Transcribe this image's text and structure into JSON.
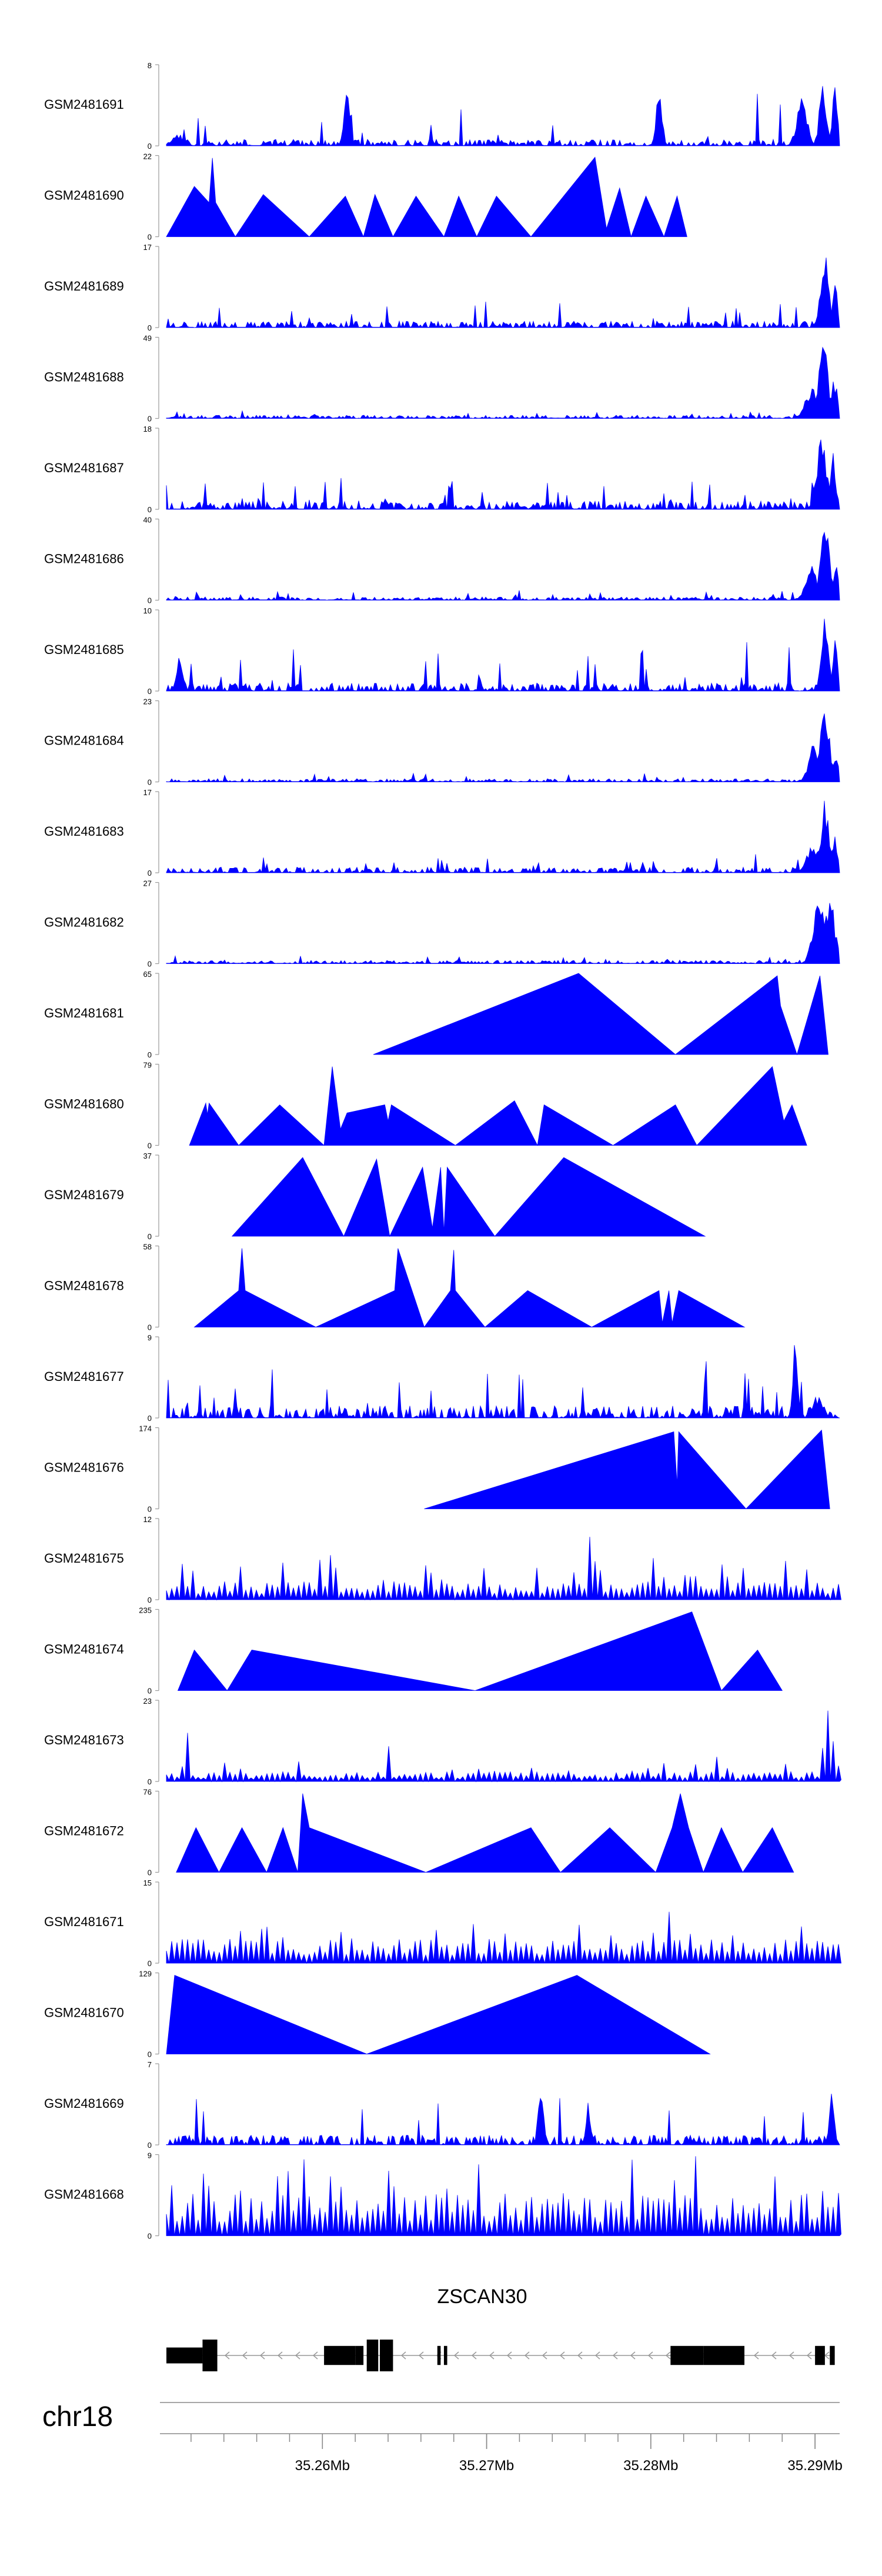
{
  "chart_data": {
    "type": "area",
    "title": "",
    "color": "#0000ff",
    "chromosome": "chr18",
    "gene": "ZSCAN30",
    "x_range_mb": [
      35.2505,
      35.2915
    ],
    "x_ticks_mb": [
      35.26,
      35.27,
      35.28,
      35.29
    ],
    "x_tick_labels": [
      "35.26Mb",
      "35.27Mb",
      "35.28Mb",
      "35.29Mb"
    ],
    "tracks": [
      {
        "name": "GSM2481691",
        "ymax": 8,
        "ymax_label": "8",
        "ymin_label": "0",
        "style": "dense",
        "x_start": 35.2505,
        "x_end": 35.2915,
        "seed": 11,
        "base": 0.08,
        "spike": 0.65,
        "peaks": [
          [
            35.2512,
            0.15,
            0.25
          ],
          [
            35.2615,
            0.7,
            0.12
          ],
          [
            35.2805,
            0.75,
            0.12
          ],
          [
            35.2892,
            0.7,
            0.2
          ],
          [
            35.2905,
            0.8,
            0.15
          ],
          [
            35.2912,
            0.95,
            0.1
          ]
        ]
      },
      {
        "name": "GSM2481690",
        "ymax": 22,
        "ymax_label": "22",
        "ymin_label": "0",
        "style": "tri",
        "pts": [
          [
            35.2505,
            0
          ],
          [
            35.2522,
            0.62
          ],
          [
            35.2531,
            0.42
          ],
          [
            35.2533,
            0.97
          ],
          [
            35.2535,
            0.42
          ],
          [
            35.2547,
            0
          ],
          [
            35.2564,
            0.52
          ],
          [
            35.2592,
            0
          ],
          [
            35.2614,
            0.5
          ],
          [
            35.2625,
            0
          ],
          [
            35.2632,
            0.52
          ],
          [
            35.2643,
            0
          ],
          [
            35.2657,
            0.5
          ],
          [
            35.2674,
            0
          ],
          [
            35.2683,
            0.5
          ],
          [
            35.2694,
            0
          ],
          [
            35.2706,
            0.5
          ],
          [
            35.2727,
            0
          ],
          [
            35.2766,
            0.98
          ],
          [
            35.2773,
            0.1
          ],
          [
            35.2781,
            0.6
          ],
          [
            35.2788,
            0
          ],
          [
            35.2797,
            0.5
          ],
          [
            35.2808,
            0
          ],
          [
            35.2816,
            0.5
          ],
          [
            35.2822,
            0
          ]
        ]
      },
      {
        "name": "GSM2481689",
        "ymax": 17,
        "ymax_label": "17",
        "ymin_label": "0",
        "style": "dense",
        "x_start": 35.2505,
        "x_end": 35.2915,
        "seed": 13,
        "base": 0.08,
        "spike": 0.3,
        "peaks": [
          [
            35.2906,
            0.95,
            0.18
          ],
          [
            35.2912,
            0.6,
            0.12
          ]
        ]
      },
      {
        "name": "GSM2481688",
        "ymax": 49,
        "ymax_label": "49",
        "ymin_label": "0",
        "style": "dense",
        "x_start": 35.2505,
        "x_end": 35.2915,
        "seed": 17,
        "base": 0.04,
        "spike": 0.08,
        "peaks": [
          [
            35.2898,
            0.4,
            0.25
          ],
          [
            35.2905,
            0.97,
            0.2
          ],
          [
            35.2912,
            0.55,
            0.12
          ]
        ]
      },
      {
        "name": "GSM2481687",
        "ymax": 18,
        "ymax_label": "18",
        "ymin_label": "0",
        "style": "dense",
        "x_start": 35.2505,
        "x_end": 35.2915,
        "seed": 19,
        "base": 0.1,
        "spike": 0.35,
        "peaks": [
          [
            35.2904,
            0.9,
            0.2
          ],
          [
            35.2911,
            0.7,
            0.12
          ]
        ]
      },
      {
        "name": "GSM2481686",
        "ymax": 40,
        "ymax_label": "40",
        "ymin_label": "0",
        "style": "dense",
        "x_start": 35.2505,
        "x_end": 35.2915,
        "seed": 23,
        "base": 0.04,
        "spike": 0.1,
        "peaks": [
          [
            35.2898,
            0.45,
            0.25
          ],
          [
            35.2906,
            0.97,
            0.18
          ],
          [
            35.2913,
            0.55,
            0.1
          ]
        ]
      },
      {
        "name": "GSM2481685",
        "ymax": 10,
        "ymax_label": "10",
        "ymin_label": "0",
        "style": "dense",
        "x_start": 35.2505,
        "x_end": 35.2915,
        "seed": 29,
        "base": 0.1,
        "spike": 0.6,
        "peaks": [
          [
            35.2513,
            0.45,
            0.12
          ],
          [
            35.2906,
            0.9,
            0.15
          ],
          [
            35.2912,
            0.7,
            0.1
          ]
        ]
      },
      {
        "name": "GSM2481684",
        "ymax": 23,
        "ymax_label": "23",
        "ymin_label": "0",
        "style": "dense",
        "x_start": 35.2505,
        "x_end": 35.2915,
        "seed": 31,
        "base": 0.04,
        "spike": 0.1,
        "peaks": [
          [
            35.2899,
            0.5,
            0.2
          ],
          [
            35.2906,
            0.97,
            0.2
          ],
          [
            35.2913,
            0.45,
            0.1
          ]
        ]
      },
      {
        "name": "GSM2481683",
        "ymax": 17,
        "ymax_label": "17",
        "ymin_label": "0",
        "style": "dense",
        "x_start": 35.2505,
        "x_end": 35.2915,
        "seed": 37,
        "base": 0.07,
        "spike": 0.18,
        "peaks": [
          [
            35.2899,
            0.4,
            0.25
          ],
          [
            35.2906,
            0.95,
            0.18
          ],
          [
            35.2912,
            0.6,
            0.1
          ]
        ]
      },
      {
        "name": "GSM2481682",
        "ymax": 27,
        "ymax_label": "27",
        "ymin_label": "0",
        "style": "dense",
        "x_start": 35.2505,
        "x_end": 35.2915,
        "seed": 41,
        "base": 0.04,
        "spike": 0.08,
        "peaks": [
          [
            35.2902,
            0.9,
            0.22
          ],
          [
            35.2909,
            0.97,
            0.18
          ],
          [
            35.2913,
            0.5,
            0.1
          ]
        ]
      },
      {
        "name": "GSM2481681",
        "ymax": 65,
        "ymax_label": "65",
        "ymin_label": "0",
        "style": "tri",
        "pts": [
          [
            35.2631,
            0
          ],
          [
            35.2756,
            1.0
          ],
          [
            35.2815,
            0
          ],
          [
            35.2877,
            0.97
          ],
          [
            35.2879,
            0.6
          ],
          [
            35.2889,
            0
          ],
          [
            35.2903,
            0.97
          ],
          [
            35.2908,
            0
          ]
        ]
      },
      {
        "name": "GSM2481680",
        "ymax": 79,
        "ymax_label": "79",
        "ymin_label": "0",
        "style": "tri",
        "pts": [
          [
            35.2519,
            0
          ],
          [
            35.2529,
            0.52
          ],
          [
            35.253,
            0.38
          ],
          [
            35.2531,
            0.52
          ],
          [
            35.2549,
            0
          ],
          [
            35.2574,
            0.5
          ],
          [
            35.2601,
            0
          ],
          [
            35.2606,
            0.97
          ],
          [
            35.2611,
            0.2
          ],
          [
            35.2615,
            0.4
          ],
          [
            35.2638,
            0.5
          ],
          [
            35.264,
            0.3
          ],
          [
            35.2642,
            0.5
          ],
          [
            35.2681,
            0
          ],
          [
            35.2717,
            0.55
          ],
          [
            35.2731,
            0
          ],
          [
            35.2735,
            0.5
          ],
          [
            35.2777,
            0
          ],
          [
            35.2815,
            0.5
          ],
          [
            35.2828,
            0
          ],
          [
            35.2874,
            0.97
          ],
          [
            35.2881,
            0.3
          ],
          [
            35.2886,
            0.5
          ],
          [
            35.2895,
            0
          ]
        ]
      },
      {
        "name": "GSM2481679",
        "ymax": 37,
        "ymax_label": "37",
        "ymin_label": "0",
        "style": "tri",
        "pts": [
          [
            35.2545,
            0
          ],
          [
            35.2588,
            0.97
          ],
          [
            35.2613,
            0
          ],
          [
            35.2633,
            0.95
          ],
          [
            35.2641,
            0
          ],
          [
            35.2661,
            0.85
          ],
          [
            35.2667,
            0.1
          ],
          [
            35.2672,
            0.85
          ],
          [
            35.2674,
            0.05
          ],
          [
            35.2676,
            0.85
          ],
          [
            35.2705,
            0
          ],
          [
            35.2747,
            0.97
          ],
          [
            35.2833,
            0
          ]
        ]
      },
      {
        "name": "GSM2481678",
        "ymax": 58,
        "ymax_label": "58",
        "ymin_label": "0",
        "style": "tri",
        "pts": [
          [
            35.2522,
            0
          ],
          [
            35.2549,
            0.45
          ],
          [
            35.2551,
            0.97
          ],
          [
            35.2553,
            0.45
          ],
          [
            35.2596,
            0
          ],
          [
            35.2644,
            0.45
          ],
          [
            35.2646,
            0.97
          ],
          [
            35.2662,
            0
          ],
          [
            35.2678,
            0.45
          ],
          [
            35.268,
            0.95
          ],
          [
            35.2681,
            0.45
          ],
          [
            35.2699,
            0
          ],
          [
            35.2725,
            0.45
          ],
          [
            35.2764,
            0
          ],
          [
            35.2805,
            0.45
          ],
          [
            35.2807,
            0.05
          ],
          [
            35.2811,
            0.45
          ],
          [
            35.2813,
            0.05
          ],
          [
            35.2817,
            0.45
          ],
          [
            35.2857,
            0
          ]
        ]
      },
      {
        "name": "GSM2481677",
        "ymax": 9,
        "ymax_label": "9",
        "ymin_label": "0",
        "style": "dense",
        "x_start": 35.2505,
        "x_end": 35.2915,
        "seed": 43,
        "base": 0.15,
        "spike": 0.6,
        "peaks": [
          [
            35.2888,
            0.97,
            0.1
          ],
          [
            35.2902,
            0.3,
            0.2
          ]
        ]
      },
      {
        "name": "GSM2481676",
        "ymax": 174,
        "ymax_label": "174",
        "ymin_label": "0",
        "style": "tri",
        "pts": [
          [
            35.2662,
            0
          ],
          [
            35.2814,
            0.95
          ],
          [
            35.2816,
            0.3
          ],
          [
            35.2817,
            0.95
          ],
          [
            35.2858,
            0
          ],
          [
            35.2904,
            0.97
          ],
          [
            35.2909,
            0
          ]
        ]
      },
      {
        "name": "GSM2481675",
        "ymax": 12,
        "ymax_label": "12",
        "ymin_label": "0",
        "style": "saw",
        "x_start": 35.2505,
        "x_end": 35.2915,
        "seed": 47,
        "base": 0.15,
        "spike": 0.35,
        "peaks": [
          [
            35.2762,
            0.97,
            0.08
          ],
          [
            35.2765,
            0.6,
            0.1
          ],
          [
            35.2605,
            0.55,
            0.1
          ],
          [
            35.2845,
            0.5,
            0.1
          ]
        ]
      },
      {
        "name": "GSM2481674",
        "ymax": 235,
        "ymax_label": "235",
        "ymin_label": "0",
        "style": "tri",
        "pts": [
          [
            35.2512,
            0
          ],
          [
            35.2522,
            0.5
          ],
          [
            35.2542,
            0
          ],
          [
            35.2557,
            0.5
          ],
          [
            35.2693,
            0
          ],
          [
            35.2825,
            0.97
          ],
          [
            35.2843,
            0
          ],
          [
            35.2865,
            0.5
          ],
          [
            35.288,
            0
          ]
        ]
      },
      {
        "name": "GSM2481673",
        "ymax": 23,
        "ymax_label": "23",
        "ymin_label": "0",
        "style": "saw",
        "x_start": 35.2505,
        "x_end": 35.2915,
        "seed": 53,
        "base": 0.08,
        "spike": 0.2,
        "peaks": [
          [
            35.2518,
            0.6,
            0.1
          ],
          [
            35.2641,
            0.5,
            0.08
          ],
          [
            35.2907,
            0.97,
            0.12
          ],
          [
            35.2912,
            0.6,
            0.1
          ]
        ]
      },
      {
        "name": "GSM2481672",
        "ymax": 76,
        "ymax_label": "76",
        "ymin_label": "0",
        "style": "tri",
        "pts": [
          [
            35.2511,
            0
          ],
          [
            35.2523,
            0.55
          ],
          [
            35.2537,
            0
          ],
          [
            35.2551,
            0.55
          ],
          [
            35.2566,
            0
          ],
          [
            35.2576,
            0.55
          ],
          [
            35.2585,
            0
          ],
          [
            35.2588,
            0.97
          ],
          [
            35.2592,
            0.55
          ],
          [
            35.2663,
            0
          ],
          [
            35.2727,
            0.55
          ],
          [
            35.2745,
            0
          ],
          [
            35.2775,
            0.55
          ],
          [
            35.2803,
            0
          ],
          [
            35.2813,
            0.55
          ],
          [
            35.2818,
            0.97
          ],
          [
            35.2823,
            0.55
          ],
          [
            35.2832,
            0
          ],
          [
            35.2843,
            0.55
          ],
          [
            35.2856,
            0
          ],
          [
            35.2874,
            0.55
          ],
          [
            35.2887,
            0
          ]
        ]
      },
      {
        "name": "GSM2481671",
        "ymax": 15,
        "ymax_label": "15",
        "ymin_label": "0",
        "style": "saw",
        "x_start": 35.2505,
        "x_end": 35.2915,
        "seed": 59,
        "base": 0.2,
        "spike": 0.3,
        "peaks": [
          [
            35.2812,
            0.97,
            0.06
          ],
          [
            35.2816,
            0.5,
            0.1
          ]
        ]
      },
      {
        "name": "GSM2481670",
        "ymax": 129,
        "ymax_label": "129",
        "ymin_label": "0",
        "style": "tri",
        "pts": [
          [
            35.2505,
            0
          ],
          [
            35.251,
            0.97
          ],
          [
            35.2627,
            0
          ],
          [
            35.2755,
            0.97
          ],
          [
            35.2836,
            0
          ]
        ]
      },
      {
        "name": "GSM2481669",
        "ymax": 7,
        "ymax_label": "7",
        "ymin_label": "0",
        "style": "dense",
        "x_start": 35.2505,
        "x_end": 35.2915,
        "seed": 61,
        "base": 0.12,
        "spike": 0.55,
        "peaks": [
          [
            35.2733,
            0.97,
            0.1
          ],
          [
            35.2762,
            0.6,
            0.1
          ],
          [
            35.291,
            0.7,
            0.1
          ]
        ]
      },
      {
        "name": "GSM2481668",
        "ymax": 9,
        "ymax_label": "9",
        "ymin_label": "0",
        "style": "saw",
        "x_start": 35.2505,
        "x_end": 35.2915,
        "seed": 67,
        "base": 0.35,
        "spike": 0.55,
        "peaks": [
          [
            35.261,
            0.65,
            0.1
          ],
          [
            35.2789,
            0.97,
            0.1
          ]
        ]
      }
    ],
    "gene_model": {
      "strand": "-",
      "exons": [
        [
          35.2505,
          35.2527
        ],
        [
          35.2527,
          35.2536
        ],
        [
          35.2601,
          35.262
        ],
        [
          35.262,
          35.2625
        ],
        [
          35.2627,
          35.2634
        ],
        [
          35.2635,
          35.2643
        ],
        [
          35.267,
          35.2672
        ],
        [
          35.2674,
          35.2676
        ],
        [
          35.2812,
          35.2832
        ],
        [
          35.2832,
          35.2857
        ],
        [
          35.29,
          35.2906
        ],
        [
          35.2909,
          35.2912
        ]
      ],
      "exon_heights": [
        0.5,
        1.0,
        0.6,
        0.6,
        1.0,
        1.0,
        0.6,
        0.6,
        0.6,
        0.6,
        0.6,
        0.6
      ],
      "intron": [
        35.2505,
        35.2912
      ]
    }
  }
}
